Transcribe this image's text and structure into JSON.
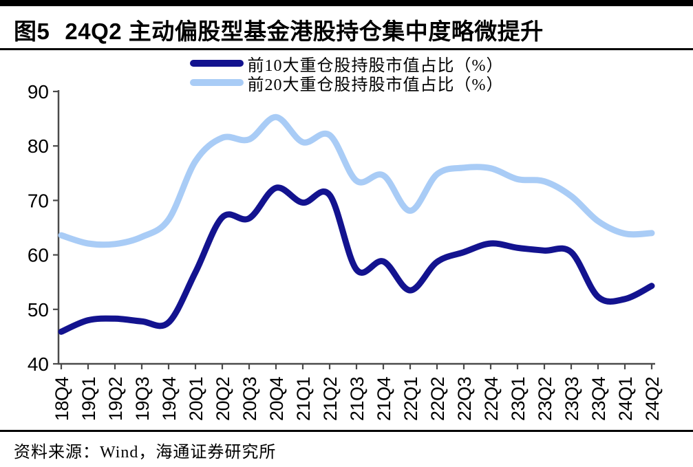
{
  "figure": {
    "label": "图5",
    "title": "24Q2 主动偏股型基金港股持仓集中度略微提升",
    "source": "资料来源：Wind，海通证券研究所"
  },
  "colors": {
    "top10_line": "#13138F",
    "top20_line": "#A9CCF6",
    "axis": "#4a4a4a",
    "rules": "#000000"
  },
  "chart_data": {
    "type": "line",
    "title": "",
    "xlabel": "",
    "ylabel": "",
    "ylim": [
      40,
      90
    ],
    "y_ticks": [
      40,
      50,
      60,
      70,
      80,
      90
    ],
    "grid": false,
    "legend_position": "top-center",
    "x_tick_rotation": -90,
    "x_labels": [
      "18Q4",
      "19Q1",
      "19Q2",
      "19Q3",
      "19Q4",
      "20Q1",
      "20Q2",
      "20Q3",
      "20Q4",
      "21Q1",
      "21Q2",
      "21Q3",
      "21Q4",
      "22Q1",
      "22Q2",
      "22Q3",
      "22Q4",
      "23Q1",
      "23Q2",
      "23Q3",
      "23Q4",
      "24Q1",
      "24Q2"
    ],
    "series": [
      {
        "name": "前10大重仓股持股市值占比（%）",
        "color": "#13138F",
        "values": [
          45.9,
          48.0,
          48.3,
          47.8,
          47.6,
          56.8,
          66.9,
          66.7,
          72.3,
          69.6,
          71.0,
          57.3,
          58.8,
          53.5,
          58.7,
          60.5,
          62.1,
          61.3,
          60.8,
          60.5,
          52.3,
          51.9,
          54.3
        ]
      },
      {
        "name": "前20大重仓股持股市值占比（%）",
        "color": "#A9CCF6",
        "values": [
          63.6,
          62.1,
          62.0,
          63.3,
          66.5,
          77.2,
          81.5,
          81.2,
          85.3,
          80.7,
          82.0,
          73.6,
          74.6,
          68.1,
          74.8,
          76.0,
          75.9,
          73.9,
          73.5,
          70.8,
          66.2,
          63.9,
          64.0
        ]
      }
    ]
  }
}
